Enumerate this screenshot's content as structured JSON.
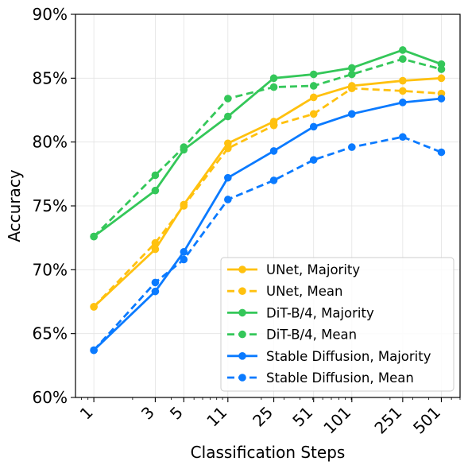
{
  "chart_data": {
    "type": "line",
    "xlabel": "Classification Steps",
    "ylabel": "Accuracy",
    "xscale": "log",
    "x": [
      1,
      3,
      5,
      11,
      25,
      51,
      101,
      251,
      501
    ],
    "x_tick_labels": [
      "1",
      "3",
      "5",
      "11",
      "25",
      "51",
      "101",
      "251",
      "501"
    ],
    "ylim": [
      0.6,
      0.9
    ],
    "y_ticks": [
      0.6,
      0.65,
      0.7,
      0.75,
      0.8,
      0.85,
      0.9
    ],
    "y_tick_labels": [
      "60%",
      "65%",
      "70%",
      "75%",
      "80%",
      "85%",
      "90%"
    ],
    "grid": true,
    "legend_position": "bottom-right",
    "series": [
      {
        "name": "UNet, Majority",
        "color": "#FFC10F",
        "dash": "solid",
        "values": [
          0.671,
          0.716,
          0.751,
          0.799,
          0.816,
          0.835,
          0.844,
          0.848,
          0.85
        ]
      },
      {
        "name": "UNet, Mean",
        "color": "#FFC10F",
        "dash": "dashed",
        "values": [
          0.671,
          0.721,
          0.75,
          0.795,
          0.813,
          0.822,
          0.842,
          0.84,
          0.838
        ]
      },
      {
        "name": "DiT-B/4, Majority",
        "color": "#34C759",
        "dash": "solid",
        "values": [
          0.726,
          0.762,
          0.794,
          0.82,
          0.85,
          0.853,
          0.858,
          0.872,
          0.861
        ]
      },
      {
        "name": "DiT-B/4, Mean",
        "color": "#34C759",
        "dash": "dashed",
        "values": [
          0.726,
          0.774,
          0.796,
          0.834,
          0.843,
          0.844,
          0.853,
          0.865,
          0.857
        ]
      },
      {
        "name": "Stable Diffusion, Majority",
        "color": "#0A7AFF",
        "dash": "solid",
        "values": [
          0.637,
          0.683,
          0.714,
          0.772,
          0.793,
          0.812,
          0.822,
          0.831,
          0.834
        ]
      },
      {
        "name": "Stable Diffusion, Mean",
        "color": "#0A7AFF",
        "dash": "dashed",
        "values": [
          0.637,
          0.69,
          0.708,
          0.755,
          0.77,
          0.786,
          0.796,
          0.804,
          0.792
        ]
      }
    ]
  }
}
